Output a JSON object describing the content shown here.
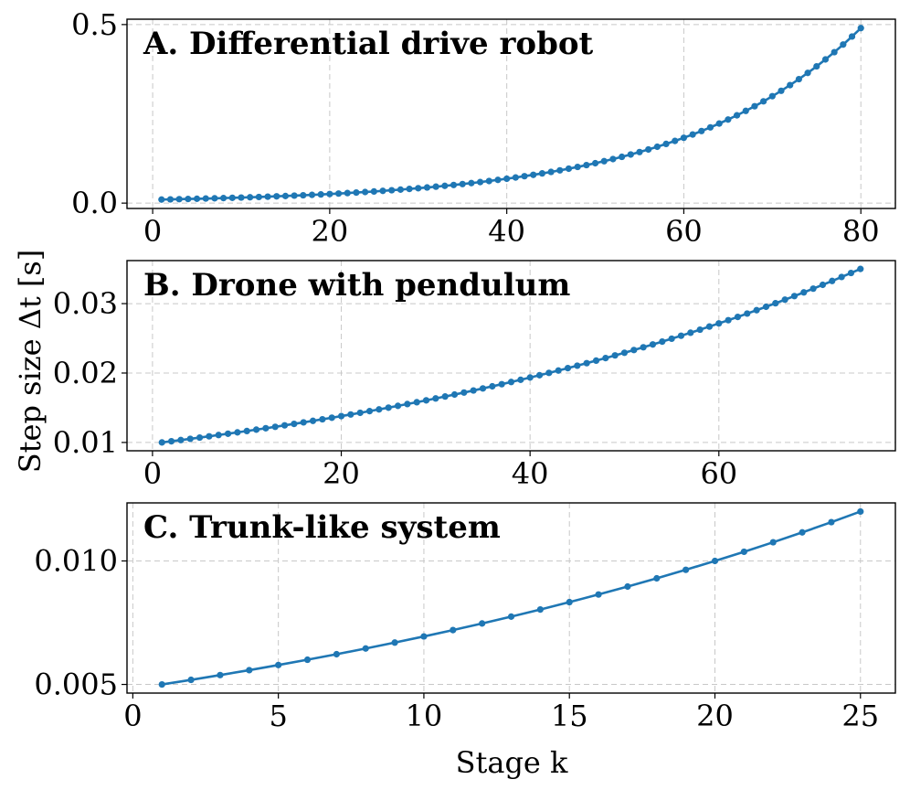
{
  "figure": {
    "xlabel": "Stage k",
    "ylabel": "Step size Δt [s]"
  },
  "colors": {
    "series": "#1f77b4"
  },
  "chart_data": [
    {
      "type": "line",
      "title": "A. Differential drive robot",
      "xlim": [
        -2.9,
        83.9
      ],
      "ylim": [
        -0.015,
        0.515
      ],
      "xticks": [
        0,
        20,
        40,
        60,
        80
      ],
      "xtick_labels": [
        "0",
        "20",
        "40",
        "60",
        "80"
      ],
      "yticks": [
        0.0,
        0.5
      ],
      "ytick_labels": [
        "0.0",
        "0.5"
      ],
      "grid": true,
      "series": [
        {
          "kind": "geometric",
          "x_start": 1,
          "x_end": 80,
          "y_start": 0.01,
          "y_end": 0.49,
          "x": [
            1,
            80
          ]
        }
      ]
    },
    {
      "type": "line",
      "title": "B. Drone with pendulum",
      "xlim": [
        -2.7,
        78.7
      ],
      "ylim": [
        0.0088,
        0.0362
      ],
      "xticks": [
        0,
        20,
        40,
        60
      ],
      "xtick_labels": [
        "0",
        "20",
        "40",
        "60"
      ],
      "yticks": [
        0.01,
        0.02,
        0.03
      ],
      "ytick_labels": [
        "0.01",
        "0.02",
        "0.03"
      ],
      "grid": true,
      "series": [
        {
          "kind": "geometric",
          "x_start": 1,
          "x_end": 75,
          "y_start": 0.01,
          "y_end": 0.035,
          "x": [
            1,
            75
          ]
        }
      ]
    },
    {
      "type": "line",
      "title": "C. Trunk-like system",
      "xlim": [
        -0.2,
        26.2
      ],
      "ylim": [
        0.00465,
        0.01235
      ],
      "xticks": [
        0,
        5,
        10,
        15,
        20,
        25
      ],
      "xtick_labels": [
        "0",
        "5",
        "10",
        "15",
        "20",
        "25"
      ],
      "yticks": [
        0.005,
        0.01
      ],
      "ytick_labels": [
        "0.005",
        "0.010"
      ],
      "grid": true,
      "series": [
        {
          "kind": "geometric",
          "x_start": 1,
          "x_end": 25,
          "y_start": 0.005,
          "y_end": 0.012,
          "x": [
            1,
            25
          ]
        }
      ]
    }
  ]
}
